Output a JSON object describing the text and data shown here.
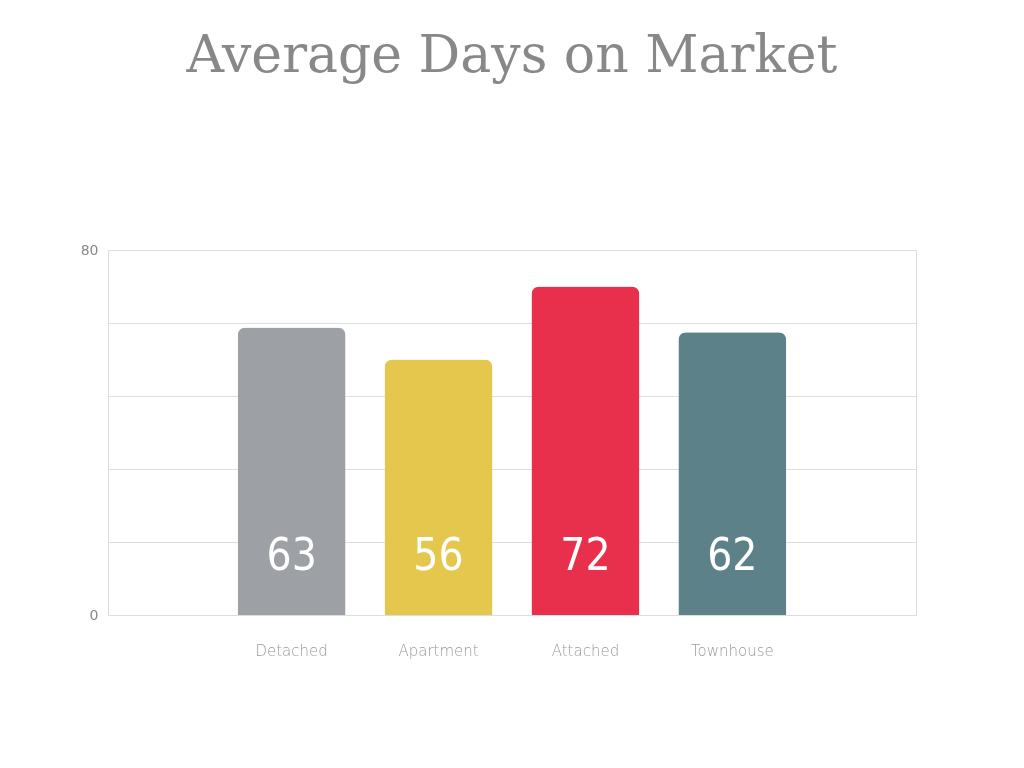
{
  "chart_data": {
    "type": "bar",
    "title": "Average Days on Market",
    "categories": [
      "Detached",
      "Apartment",
      "Attached",
      "Townhouse"
    ],
    "values": [
      63,
      56,
      72,
      62
    ],
    "colors": [
      "#9da0a4",
      "#e4c74c",
      "#e8304c",
      "#5c8188"
    ],
    "ylim": [
      0,
      80
    ],
    "yticks": [
      0,
      {
        "value": 16,
        "label": null
      },
      {
        "value": 32,
        "label": null
      },
      {
        "value": 48,
        "label": null
      },
      {
        "value": 64,
        "label": null
      },
      80
    ],
    "grid": "y",
    "data_labels": true
  }
}
